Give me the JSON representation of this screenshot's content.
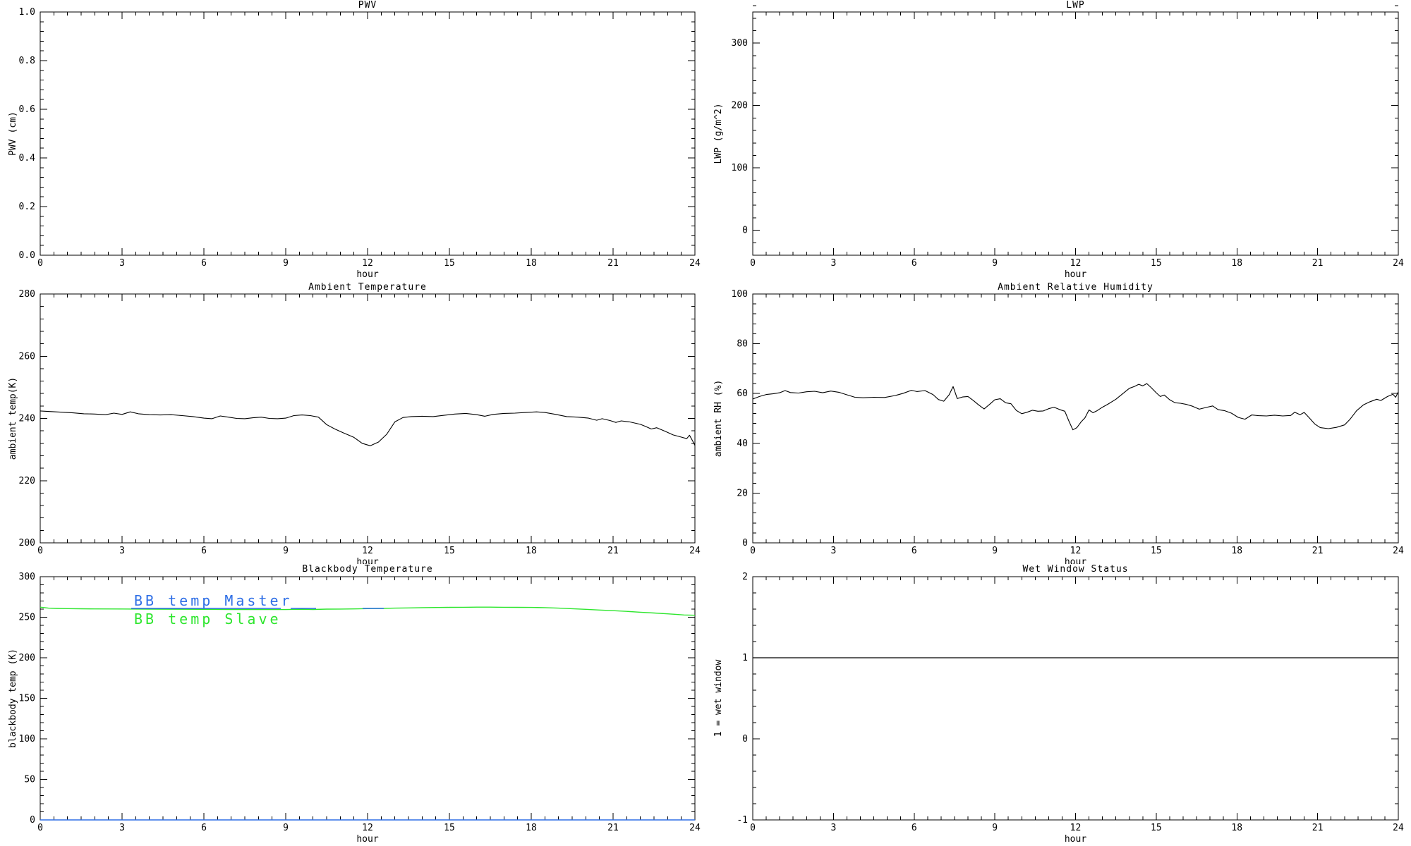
{
  "page": {
    "background": "#ffffff",
    "axis_color": "#000000",
    "colors": {
      "black": "#000000",
      "blue": "#2f6fe6",
      "green": "#2ee62e"
    }
  },
  "chart_data": [
    {
      "id": "pwv",
      "type": "line",
      "title": "PWV",
      "xlabel": "hour",
      "ylabel": "PWV (cm)",
      "xlim": [
        0,
        24
      ],
      "ylim": [
        0,
        1
      ],
      "xtick_major": 3,
      "xtick_minor": 0.5,
      "ytick_major": 0.2,
      "ytick_minor": 0.04,
      "ytick_decimals": 1,
      "grid": false,
      "legend": null,
      "series": []
    },
    {
      "id": "lwp",
      "type": "line",
      "title": "LWP",
      "xlabel": "hour",
      "ylabel": "LWP (g/m^2)",
      "xlim": [
        0,
        24
      ],
      "ylim": [
        -40,
        350
      ],
      "xtick_major": 3,
      "xtick_minor": 0.5,
      "ytick_major": 100,
      "ytick_minor": 20,
      "ytick_decimals": 0,
      "grid": false,
      "legend": null,
      "series": []
    },
    {
      "id": "ambient-temperature",
      "type": "line",
      "title": "Ambient Temperature",
      "xlabel": "hour",
      "ylabel": "ambient temp(K)",
      "xlim": [
        0,
        24
      ],
      "ylim": [
        200,
        280
      ],
      "xtick_major": 3,
      "xtick_minor": 0.5,
      "ytick_major": 20,
      "ytick_minor": 4,
      "ytick_decimals": 0,
      "grid": false,
      "legend": null,
      "series": [
        {
          "name": "ambient-temp-line",
          "color": "#000000",
          "width": 1.1,
          "points": [
            [
              0,
              242.4
            ],
            [
              0.4,
              242.2
            ],
            [
              0.8,
              242.0
            ],
            [
              1.2,
              241.8
            ],
            [
              1.6,
              241.5
            ],
            [
              2,
              241.4
            ],
            [
              2.4,
              241.2
            ],
            [
              2.7,
              241.7
            ],
            [
              3,
              241.3
            ],
            [
              3.3,
              242.1
            ],
            [
              3.6,
              241.5
            ],
            [
              4,
              241.2
            ],
            [
              4.4,
              241.1
            ],
            [
              4.8,
              241.2
            ],
            [
              5.2,
              240.9
            ],
            [
              5.6,
              240.6
            ],
            [
              6,
              240.1
            ],
            [
              6.3,
              239.9
            ],
            [
              6.6,
              240.8
            ],
            [
              6.9,
              240.4
            ],
            [
              7.2,
              240.0
            ],
            [
              7.5,
              239.9
            ],
            [
              7.8,
              240.2
            ],
            [
              8.1,
              240.4
            ],
            [
              8.4,
              240.0
            ],
            [
              8.7,
              239.9
            ],
            [
              9,
              240.1
            ],
            [
              9.3,
              240.9
            ],
            [
              9.6,
              241.1
            ],
            [
              9.9,
              240.9
            ],
            [
              10.2,
              240.4
            ],
            [
              10.5,
              238.0
            ],
            [
              10.8,
              236.6
            ],
            [
              11.1,
              235.4
            ],
            [
              11.5,
              233.9
            ],
            [
              11.8,
              232.0
            ],
            [
              12.1,
              231.2
            ],
            [
              12.4,
              232.4
            ],
            [
              12.7,
              234.9
            ],
            [
              13,
              238.9
            ],
            [
              13.3,
              240.3
            ],
            [
              13.6,
              240.6
            ],
            [
              14,
              240.7
            ],
            [
              14.4,
              240.6
            ],
            [
              14.8,
              241.0
            ],
            [
              15.2,
              241.4
            ],
            [
              15.6,
              241.6
            ],
            [
              16,
              241.2
            ],
            [
              16.3,
              240.7
            ],
            [
              16.6,
              241.3
            ],
            [
              17,
              241.6
            ],
            [
              17.4,
              241.7
            ],
            [
              17.8,
              241.9
            ],
            [
              18.2,
              242.1
            ],
            [
              18.5,
              241.9
            ],
            [
              18.9,
              241.3
            ],
            [
              19.3,
              240.6
            ],
            [
              19.7,
              240.4
            ],
            [
              20.1,
              240.1
            ],
            [
              20.4,
              239.4
            ],
            [
              20.6,
              239.9
            ],
            [
              20.9,
              239.3
            ],
            [
              21.1,
              238.7
            ],
            [
              21.3,
              239.2
            ],
            [
              21.6,
              238.9
            ],
            [
              22,
              238.1
            ],
            [
              22.2,
              237.4
            ],
            [
              22.4,
              236.6
            ],
            [
              22.6,
              237.0
            ],
            [
              22.9,
              235.9
            ],
            [
              23.2,
              234.7
            ],
            [
              23.5,
              234.0
            ],
            [
              23.7,
              233.5
            ],
            [
              23.8,
              234.6
            ],
            [
              23.95,
              232.2
            ],
            [
              24,
              231.3
            ]
          ]
        }
      ]
    },
    {
      "id": "ambient-relative-humidity",
      "type": "line",
      "title": "Ambient Relative Humidity",
      "xlabel": "hour",
      "ylabel": "ambient RH (%)",
      "xlim": [
        0,
        24
      ],
      "ylim": [
        0,
        100
      ],
      "xtick_major": 3,
      "xtick_minor": 0.5,
      "ytick_major": 20,
      "ytick_minor": 4,
      "ytick_decimals": 0,
      "grid": false,
      "legend": null,
      "series": [
        {
          "name": "ambient-rh-line",
          "color": "#000000",
          "width": 1.1,
          "points": [
            [
              0,
              57.8
            ],
            [
              0.25,
              58.8
            ],
            [
              0.5,
              59.6
            ],
            [
              0.75,
              59.9
            ],
            [
              1,
              60.3
            ],
            [
              1.2,
              61.2
            ],
            [
              1.4,
              60.4
            ],
            [
              1.7,
              60.2
            ],
            [
              2,
              60.7
            ],
            [
              2.3,
              60.9
            ],
            [
              2.6,
              60.3
            ],
            [
              2.9,
              61.0
            ],
            [
              3.2,
              60.5
            ],
            [
              3.5,
              59.5
            ],
            [
              3.8,
              58.5
            ],
            [
              4.1,
              58.3
            ],
            [
              4.5,
              58.5
            ],
            [
              4.9,
              58.4
            ],
            [
              5.3,
              59.2
            ],
            [
              5.6,
              60.1
            ],
            [
              5.9,
              61.3
            ],
            [
              6.1,
              60.8
            ],
            [
              6.4,
              61.2
            ],
            [
              6.7,
              59.6
            ],
            [
              6.9,
              57.6
            ],
            [
              7.1,
              56.9
            ],
            [
              7.3,
              59.5
            ],
            [
              7.45,
              62.8
            ],
            [
              7.6,
              58.0
            ],
            [
              7.8,
              58.6
            ],
            [
              8,
              58.8
            ],
            [
              8.2,
              57.2
            ],
            [
              8.4,
              55.4
            ],
            [
              8.6,
              53.8
            ],
            [
              8.8,
              55.6
            ],
            [
              9,
              57.5
            ],
            [
              9.2,
              57.9
            ],
            [
              9.4,
              56.3
            ],
            [
              9.6,
              55.9
            ],
            [
              9.8,
              53.2
            ],
            [
              10,
              51.9
            ],
            [
              10.2,
              52.5
            ],
            [
              10.4,
              53.3
            ],
            [
              10.6,
              52.9
            ],
            [
              10.8,
              53.0
            ],
            [
              11,
              53.9
            ],
            [
              11.2,
              54.5
            ],
            [
              11.4,
              53.6
            ],
            [
              11.6,
              52.9
            ],
            [
              11.75,
              49.0
            ],
            [
              11.9,
              45.4
            ],
            [
              12.05,
              46.3
            ],
            [
              12.2,
              48.5
            ],
            [
              12.35,
              50.2
            ],
            [
              12.5,
              53.4
            ],
            [
              12.65,
              52.3
            ],
            [
              12.8,
              53.1
            ],
            [
              13,
              54.5
            ],
            [
              13.2,
              55.7
            ],
            [
              13.5,
              57.7
            ],
            [
              13.8,
              60.3
            ],
            [
              14,
              62.1
            ],
            [
              14.2,
              62.9
            ],
            [
              14.35,
              63.7
            ],
            [
              14.5,
              63.1
            ],
            [
              14.65,
              64.0
            ],
            [
              14.8,
              62.5
            ],
            [
              15,
              60.3
            ],
            [
              15.15,
              58.8
            ],
            [
              15.3,
              59.4
            ],
            [
              15.5,
              57.5
            ],
            [
              15.7,
              56.3
            ],
            [
              15.9,
              56.1
            ],
            [
              16.1,
              55.7
            ],
            [
              16.35,
              54.9
            ],
            [
              16.6,
              53.7
            ],
            [
              16.85,
              54.4
            ],
            [
              17.1,
              55.0
            ],
            [
              17.3,
              53.5
            ],
            [
              17.55,
              53.1
            ],
            [
              17.8,
              52.1
            ],
            [
              18.05,
              50.4
            ],
            [
              18.3,
              49.7
            ],
            [
              18.55,
              51.4
            ],
            [
              18.8,
              51.1
            ],
            [
              19.1,
              51.0
            ],
            [
              19.4,
              51.3
            ],
            [
              19.7,
              51.0
            ],
            [
              20,
              51.2
            ],
            [
              20.15,
              52.5
            ],
            [
              20.35,
              51.5
            ],
            [
              20.5,
              52.4
            ],
            [
              20.7,
              50.1
            ],
            [
              20.9,
              47.7
            ],
            [
              21.1,
              46.3
            ],
            [
              21.4,
              45.9
            ],
            [
              21.7,
              46.4
            ],
            [
              22,
              47.4
            ],
            [
              22.2,
              49.6
            ],
            [
              22.45,
              53.1
            ],
            [
              22.7,
              55.4
            ],
            [
              22.95,
              56.7
            ],
            [
              23.2,
              57.7
            ],
            [
              23.35,
              57.2
            ],
            [
              23.6,
              58.8
            ],
            [
              23.8,
              59.7
            ],
            [
              23.9,
              58.5
            ],
            [
              24,
              60.7
            ]
          ]
        }
      ]
    },
    {
      "id": "blackbody-temperature",
      "type": "line",
      "title": "Blackbody Temperature",
      "xlabel": "hour",
      "ylabel": "blackbody temp (K)",
      "xlim": [
        0,
        24
      ],
      "ylim": [
        0,
        300
      ],
      "xtick_major": 3,
      "xtick_minor": 0.5,
      "ytick_major": 50,
      "ytick_minor": 10,
      "ytick_decimals": 0,
      "grid": false,
      "legend": {
        "entries": [
          {
            "label": "BB temp Master",
            "color": "#2f6fe6"
          },
          {
            "label": "BB temp Slave",
            "color": "#2ee62e"
          }
        ],
        "sample_line_color": "#2f6fe6"
      },
      "series": [
        {
          "name": "bb-temp-slave-line",
          "color": "#2ee62e",
          "width": 1.4,
          "points": [
            [
              0,
              262.4
            ],
            [
              0.3,
              261.2
            ],
            [
              0.6,
              260.9
            ],
            [
              1,
              260.6
            ],
            [
              1.5,
              260.4
            ],
            [
              2,
              260.3
            ],
            [
              3,
              260.2
            ],
            [
              4,
              259.9
            ],
            [
              5,
              259.8
            ],
            [
              6,
              259.7
            ],
            [
              7,
              259.6
            ],
            [
              8,
              259.6
            ],
            [
              9,
              259.5
            ],
            [
              9.6,
              259.8
            ],
            [
              10,
              259.6
            ],
            [
              10.5,
              260.0
            ],
            [
              11,
              260.1
            ],
            [
              11.5,
              260.3
            ],
            [
              12,
              260.6
            ],
            [
              12.5,
              260.9
            ],
            [
              13,
              261.2
            ],
            [
              13.5,
              261.5
            ],
            [
              14,
              261.8
            ],
            [
              14.5,
              262.0
            ],
            [
              15,
              262.2
            ],
            [
              15.5,
              262.3
            ],
            [
              16,
              262.4
            ],
            [
              16.5,
              262.4
            ],
            [
              17,
              262.3
            ],
            [
              17.5,
              262.2
            ],
            [
              18,
              262.1
            ],
            [
              18.5,
              261.8
            ],
            [
              19,
              261.2
            ],
            [
              19.5,
              260.5
            ],
            [
              20,
              259.7
            ],
            [
              20.5,
              258.9
            ],
            [
              21,
              258.1
            ],
            [
              21.5,
              257.2
            ],
            [
              22,
              256.2
            ],
            [
              22.5,
              255.2
            ],
            [
              23,
              254.2
            ],
            [
              23.3,
              253.6
            ],
            [
              23.6,
              252.8
            ],
            [
              24,
              252.4
            ]
          ]
        },
        {
          "name": "bb-temp-master-line",
          "color": "#2f6fe6",
          "width": 1.4,
          "points": [
            [
              0,
              0
            ],
            [
              24,
              0
            ]
          ]
        }
      ]
    },
    {
      "id": "wet-window-status",
      "type": "line",
      "title": "Wet Window Status",
      "xlabel": "hour",
      "ylabel": "1 = wet window",
      "xlim": [
        0,
        24
      ],
      "ylim": [
        -1,
        2
      ],
      "xtick_major": 3,
      "xtick_minor": 0.5,
      "ytick_major": 1,
      "ytick_minor": 0.2,
      "ytick_decimals": 0,
      "grid": false,
      "legend": null,
      "series": [
        {
          "name": "wet-window-line",
          "color": "#000000",
          "width": 1.2,
          "points": [
            [
              0,
              1
            ],
            [
              24,
              1
            ]
          ]
        }
      ]
    }
  ]
}
